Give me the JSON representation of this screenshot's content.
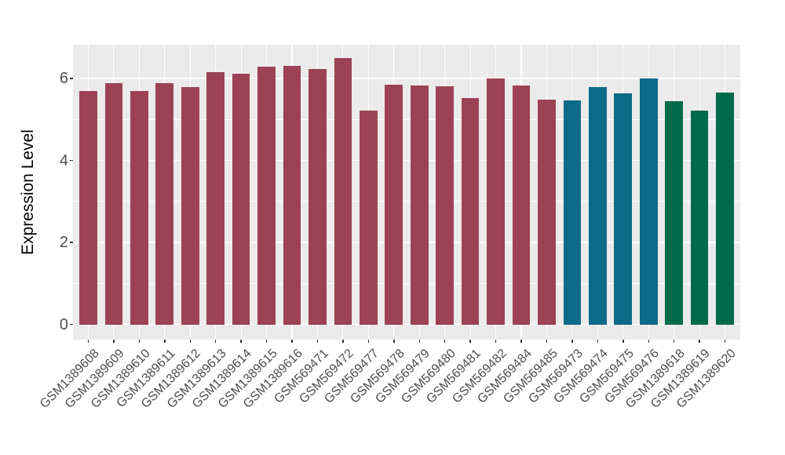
{
  "figure": {
    "background": "#FFFFFF",
    "panel_background": "#EBEBEB",
    "grid_color": "#FFFFFF",
    "tick_color": "#333333",
    "axis_text_color": "#4D4D4D",
    "axis_title_color": "#000000"
  },
  "chart_data": {
    "type": "bar",
    "title": "",
    "xlabel": "",
    "ylabel": "Expression Level",
    "legend_position": "none",
    "grid": true,
    "categories": [
      "GSM1389608",
      "GSM1389609",
      "GSM1389610",
      "GSM1389611",
      "GSM1389612",
      "GSM1389613",
      "GSM1389614",
      "GSM1389615",
      "GSM1389616",
      "GSM569471",
      "GSM569472",
      "GSM569477",
      "GSM569478",
      "GSM569479",
      "GSM569480",
      "GSM569481",
      "GSM569482",
      "GSM569484",
      "GSM569485",
      "GSM569473",
      "GSM569474",
      "GSM569475",
      "GSM569476",
      "GSM1389618",
      "GSM1389619",
      "GSM1389620"
    ],
    "values": [
      5.69,
      5.89,
      5.69,
      5.89,
      5.78,
      6.16,
      6.12,
      6.29,
      6.31,
      6.22,
      6.5,
      5.21,
      5.85,
      5.83,
      5.81,
      5.53,
      5.99,
      5.83,
      5.49,
      5.47,
      5.78,
      5.63,
      5.99,
      5.44,
      5.21,
      5.65
    ],
    "groups": [
      "group1",
      "group1",
      "group1",
      "group1",
      "group1",
      "group1",
      "group1",
      "group1",
      "group1",
      "group1",
      "group1",
      "group1",
      "group1",
      "group1",
      "group1",
      "group1",
      "group1",
      "group1",
      "group1",
      "group2",
      "group2",
      "group2",
      "group2",
      "group3",
      "group3",
      "group3"
    ],
    "group_colors": {
      "group1": "#9C4254",
      "group2": "#0D6A88",
      "group3": "#006B4A"
    },
    "ylim": [
      -0.37,
      6.82
    ],
    "yticks": [
      0,
      2,
      4,
      6
    ],
    "yticks_minor": [
      1,
      3,
      5
    ],
    "bar_width_ratio": 0.7,
    "x_expand": 0.6,
    "x_label_angle": -45
  }
}
